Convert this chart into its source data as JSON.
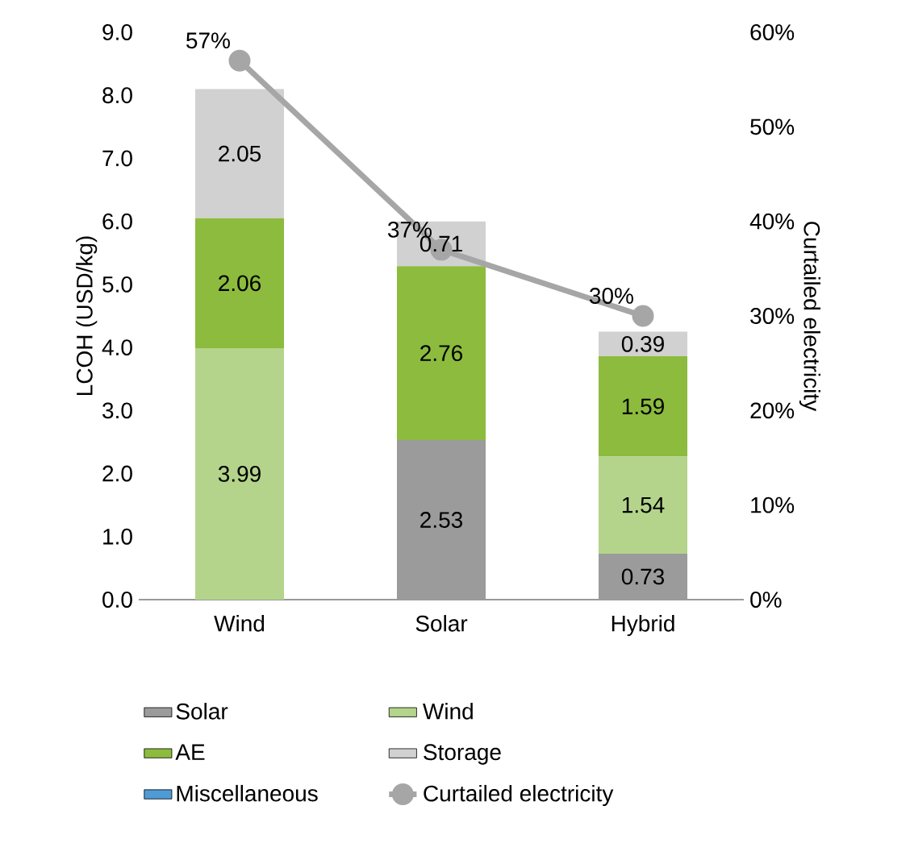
{
  "chart_data": {
    "type": "bar",
    "stacked": true,
    "data_labels": true,
    "legend": "bottom",
    "categories": [
      "Wind",
      "Solar",
      "Hybrid"
    ],
    "ylabel": "LCOH (USD/kg)",
    "y2label": "Curtailed electricity",
    "ylim": [
      0,
      9
    ],
    "yticks": [
      {
        "value": 0,
        "label": "0.0"
      },
      {
        "value": 1,
        "label": "1.0"
      },
      {
        "value": 2,
        "label": "2.0"
      },
      {
        "value": 3,
        "label": "3.0"
      },
      {
        "value": 4,
        "label": "4.0"
      },
      {
        "value": 5,
        "label": "5.0"
      },
      {
        "value": 6,
        "label": "6.0"
      },
      {
        "value": 7,
        "label": "7.0"
      },
      {
        "value": 8,
        "label": "8.0"
      },
      {
        "value": 9,
        "label": "9.0"
      }
    ],
    "y2lim": [
      0,
      60
    ],
    "y2ticks": [
      {
        "value": 0,
        "label": "0%"
      },
      {
        "value": 10,
        "label": "10%"
      },
      {
        "value": 20,
        "label": "20%"
      },
      {
        "value": 30,
        "label": "30%"
      },
      {
        "value": 40,
        "label": "40%"
      },
      {
        "value": 50,
        "label": "50%"
      },
      {
        "value": 60,
        "label": "60%"
      }
    ],
    "series": [
      {
        "name": "Solar",
        "color": "#9b9b9b",
        "values": [
          null,
          2.53,
          0.73
        ]
      },
      {
        "name": "Wind",
        "color": "#b4d48c",
        "values": [
          3.99,
          null,
          1.54
        ]
      },
      {
        "name": "AE",
        "color": "#8cbb3e",
        "values": [
          2.06,
          2.76,
          1.59
        ]
      },
      {
        "name": "Storage",
        "color": "#d1d1d1",
        "values": [
          2.05,
          0.71,
          0.39
        ]
      },
      {
        "name": "Miscellaneous",
        "color": "#4f9bd5",
        "values": [
          null,
          null,
          null
        ]
      },
      {
        "name": "Curtailed electricity",
        "type": "line",
        "axis": "y2",
        "marker": "circle",
        "color": "#a6a6a6",
        "values": [
          57,
          37,
          30
        ],
        "value_labels": [
          "57%",
          "37%",
          "30%"
        ]
      }
    ]
  }
}
